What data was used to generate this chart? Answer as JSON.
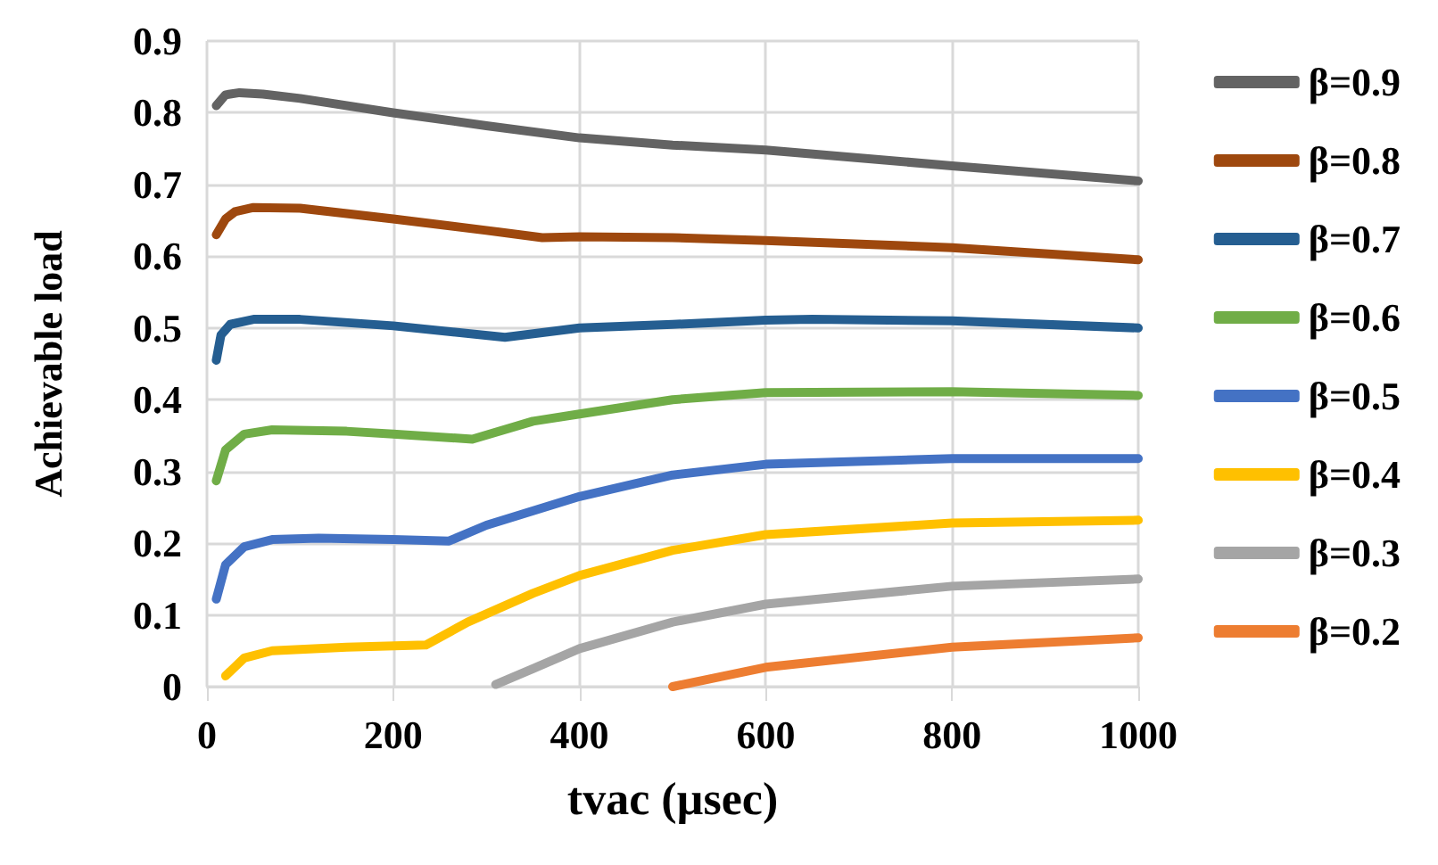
{
  "chart_data": {
    "type": "line",
    "xlabel": "tvac (µsec)",
    "ylabel": "Achievable load",
    "xlim": [
      0,
      1000
    ],
    "xticks": [
      0,
      200,
      400,
      600,
      800,
      1000
    ],
    "ylim": [
      0,
      0.9
    ],
    "yticks": [
      0,
      0.1,
      0.2,
      0.3,
      0.4,
      0.5,
      0.6,
      0.7,
      0.8,
      0.9
    ],
    "grid": true,
    "legend": "right",
    "marker": "none",
    "line_style": "solid",
    "series": [
      {
        "name": "β=0.9",
        "color": "#636363",
        "x": [
          10,
          20,
          35,
          60,
          100,
          200,
          300,
          400,
          500,
          600,
          800,
          1000
        ],
        "values": [
          0.81,
          0.825,
          0.828,
          0.826,
          0.82,
          0.8,
          0.782,
          0.765,
          0.755,
          0.748,
          0.726,
          0.705
        ]
      },
      {
        "name": "β=0.8",
        "color": "#9e480e",
        "x": [
          10,
          20,
          30,
          50,
          100,
          200,
          300,
          360,
          400,
          500,
          600,
          800,
          1000
        ],
        "values": [
          0.63,
          0.652,
          0.662,
          0.668,
          0.667,
          0.652,
          0.636,
          0.626,
          0.627,
          0.626,
          0.622,
          0.612,
          0.595
        ]
      },
      {
        "name": "β=0.7",
        "color": "#255e91",
        "x": [
          10,
          15,
          25,
          50,
          100,
          200,
          320,
          400,
          500,
          600,
          650,
          800,
          1000
        ],
        "values": [
          0.455,
          0.49,
          0.505,
          0.512,
          0.512,
          0.503,
          0.487,
          0.5,
          0.505,
          0.511,
          0.512,
          0.51,
          0.5
        ]
      },
      {
        "name": "β=0.6",
        "color": "#70ad47",
        "x": [
          10,
          20,
          40,
          70,
          150,
          200,
          285,
          350,
          400,
          500,
          600,
          800,
          1000
        ],
        "values": [
          0.287,
          0.33,
          0.352,
          0.358,
          0.356,
          0.352,
          0.345,
          0.37,
          0.38,
          0.4,
          0.41,
          0.411,
          0.406
        ]
      },
      {
        "name": "β=0.5",
        "color": "#4472c4",
        "x": [
          10,
          20,
          40,
          70,
          120,
          200,
          260,
          300,
          400,
          500,
          600,
          800,
          1000
        ],
        "values": [
          0.122,
          0.17,
          0.195,
          0.205,
          0.207,
          0.205,
          0.203,
          0.225,
          0.265,
          0.295,
          0.31,
          0.318,
          0.318
        ]
      },
      {
        "name": "β=0.4",
        "color": "#ffc000",
        "x": [
          20,
          40,
          70,
          150,
          235,
          280,
          350,
          400,
          500,
          600,
          800,
          1000
        ],
        "values": [
          0.015,
          0.04,
          0.05,
          0.055,
          0.058,
          0.09,
          0.13,
          0.155,
          0.19,
          0.212,
          0.228,
          0.232
        ]
      },
      {
        "name": "β=0.3",
        "color": "#a5a5a5",
        "x": [
          310,
          350,
          400,
          500,
          600,
          800,
          1000
        ],
        "values": [
          0.003,
          0.025,
          0.053,
          0.09,
          0.115,
          0.14,
          0.15
        ]
      },
      {
        "name": "β=0.2",
        "color": "#ed7d31",
        "x": [
          500,
          600,
          800,
          1000
        ],
        "values": [
          0.0,
          0.027,
          0.055,
          0.068
        ]
      }
    ]
  }
}
